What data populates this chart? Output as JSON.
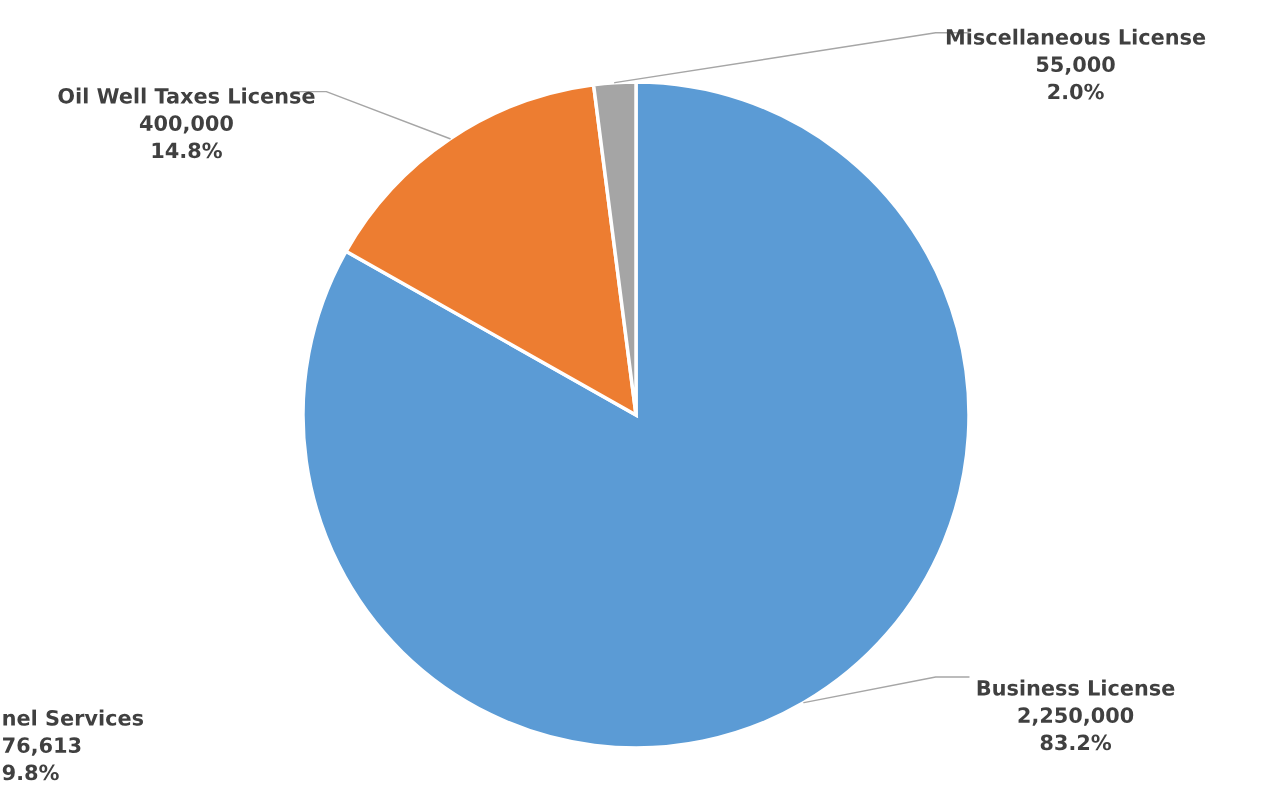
{
  "chart_data": {
    "type": "pie",
    "categories": [
      "Business License",
      "Oil Well Taxes License",
      "Miscellaneous License"
    ],
    "values": [
      2250000,
      400000,
      55000
    ],
    "colors": [
      "#5b9bd5",
      "#ed7d31",
      "#a5a5a5"
    ],
    "value_labels": [
      "2,250,000\n83.2%",
      "400,000\n14.8%",
      "55,000\n2.0%"
    ],
    "annotations": [
      "nel Services\n76,613\n9.8%"
    ],
    "legend": false
  }
}
